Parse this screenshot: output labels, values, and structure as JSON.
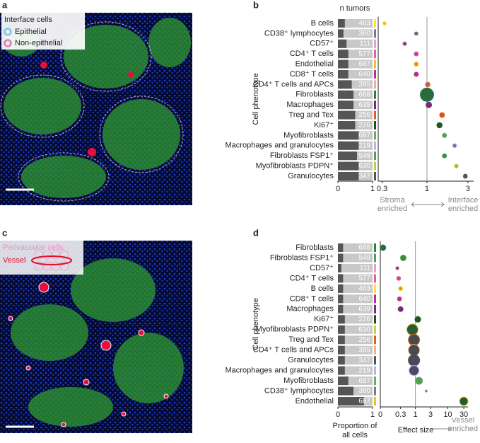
{
  "panel_labels": [
    "a",
    "b",
    "c",
    "d"
  ],
  "image_a_legend": {
    "title": "Interface cells",
    "items": [
      "Epithelial",
      "Non-epithelial"
    ]
  },
  "image_c_legend": {
    "title": "Perivascular cells",
    "items": [
      "Vessel"
    ]
  },
  "chart_data": [
    {
      "type": "dot",
      "header": "n tumors",
      "ylabel": "Cell phenotype",
      "categories": [
        "B cells",
        "CD38⁺ lymphocytes",
        "CD57⁺",
        "CD4⁺ T cells",
        "Endothelial",
        "CD8⁺ T cells",
        "CD4⁺ T cells and APCs",
        "Fibroblasts",
        "Macrophages",
        "Treg and Tex",
        "Ki67⁺",
        "Myofibroblasts",
        "Macrophages and granulocytes",
        "Fibroblasts FSP1⁺",
        "Myofibroblasts PDPN⁺",
        "Granulocytes"
      ],
      "counts": [
        463,
        360,
        111,
        577,
        687,
        640,
        395,
        688,
        639,
        256,
        226,
        687,
        219,
        549,
        630,
        347
      ],
      "proportions": [
        0.2,
        0.16,
        0.25,
        0.3,
        0.3,
        0.3,
        0.4,
        0.45,
        0.45,
        0.5,
        0.5,
        0.6,
        0.6,
        0.55,
        0.6,
        0.6
      ],
      "strip_colors": [
        "#f5e642",
        "#7a7a8c",
        "#e8a0c8",
        "#e060a0",
        "#f0c020",
        "#c03080",
        "#f0b090",
        "#2a8040",
        "#7a2a7a",
        "#e06020",
        "#205020",
        "#60b060",
        "#c0b0e0",
        "#50a050",
        "#c0d040",
        "#505060"
      ],
      "values": [
        0.32,
        0.75,
        0.55,
        0.75,
        0.75,
        0.75,
        1.02,
        1.0,
        1.05,
        1.5,
        1.4,
        1.6,
        2.1,
        1.6,
        2.2,
        2.8
      ],
      "sizes": [
        6,
        6,
        8,
        9,
        9,
        9,
        14,
        90,
        16,
        12,
        14,
        9,
        8,
        9,
        7,
        8
      ],
      "colors": [
        "#e0c020",
        "#5a7a3a",
        "#7a3a7a",
        "#d04090",
        "#c8a020",
        "#c03080",
        "#c06050",
        "#2a6a40",
        "#7a2a7a",
        "#d85020",
        "#205a20",
        "#50a050",
        "#7a68c0",
        "#3a8a40",
        "#a8b830",
        "#505068"
      ],
      "proportion_xlim": [
        0,
        1
      ],
      "proportion_xticks": [
        0,
        1
      ],
      "xscale": "log",
      "xlim": [
        0.27,
        3.5
      ],
      "xticks": [
        0.3,
        1,
        3
      ],
      "refline": 1,
      "left_note": [
        "Stroma",
        "enriched"
      ],
      "right_note": [
        "Interface",
        "enriched"
      ]
    },
    {
      "type": "dot",
      "ylabel": "Cell phenotype",
      "categories": [
        "Fibroblasts",
        "Fibroblasts FSP1⁺",
        "CD57⁺",
        "CD4⁺ T cells",
        "B cells",
        "CD8⁺ T cells",
        "Macrophages",
        "Ki67⁺",
        "Myofibroblasts PDPN⁺",
        "Treg and Tex",
        "CD4⁺ T cells and APCs",
        "Granulocytes",
        "Macrophages and granulocytes",
        "Myofibroblasts",
        "CD38⁺ lymphocytes",
        "Endothelial"
      ],
      "counts": [
        688,
        549,
        111,
        577,
        463,
        640,
        639,
        226,
        630,
        256,
        395,
        347,
        219,
        687,
        360,
        687
      ],
      "proportions": [
        0.15,
        0.15,
        0.1,
        0.15,
        0.15,
        0.15,
        0.15,
        0.2,
        0.2,
        0.2,
        0.2,
        0.2,
        0.2,
        0.3,
        0.45,
        0.75
      ],
      "strip_colors": [
        "#2a8040",
        "#50a050",
        "#e8a0c8",
        "#e060a0",
        "#f5e642",
        "#c03080",
        "#7a2a7a",
        "#205020",
        "#c0d040",
        "#e06020",
        "#f0b090",
        "#505060",
        "#c0b0e0",
        "#60b060",
        "#7a7a8c",
        "#f0c020"
      ],
      "values": [
        0.02,
        0.38,
        0.22,
        0.25,
        0.3,
        0.27,
        0.3,
        1.2,
        0.8,
        0.9,
        0.9,
        0.9,
        0.9,
        1.3,
        2.2,
        30
      ],
      "sizes": [
        16,
        16,
        6,
        8,
        9,
        8,
        12,
        16,
        64,
        64,
        64,
        64,
        49,
        25,
        2,
        36
      ],
      "colors": [
        "#2a6a40",
        "#3a8a40",
        "#7a3a7a",
        "#d04090",
        "#c8a020",
        "#c03080",
        "#7a2a7a",
        "#205a20",
        "#2a5a30",
        "#4a4a4a",
        "#4a4a4a",
        "#4a4a5a",
        "#4a4a6a",
        "#50a050",
        "#a8b830",
        "#2a5a30"
      ],
      "proportion_xlim": [
        0,
        1
      ],
      "proportion_xticks": [
        0,
        1
      ],
      "xscale": "symlog",
      "xlim": [
        0,
        40
      ],
      "xticks": [
        0,
        0.3,
        1,
        3,
        10,
        30
      ],
      "refline": 1,
      "proportion_label": [
        "Proportion of",
        "all cells"
      ],
      "xlabel": "Effect size",
      "right_note": [
        "Vessel",
        "enriched"
      ]
    }
  ]
}
